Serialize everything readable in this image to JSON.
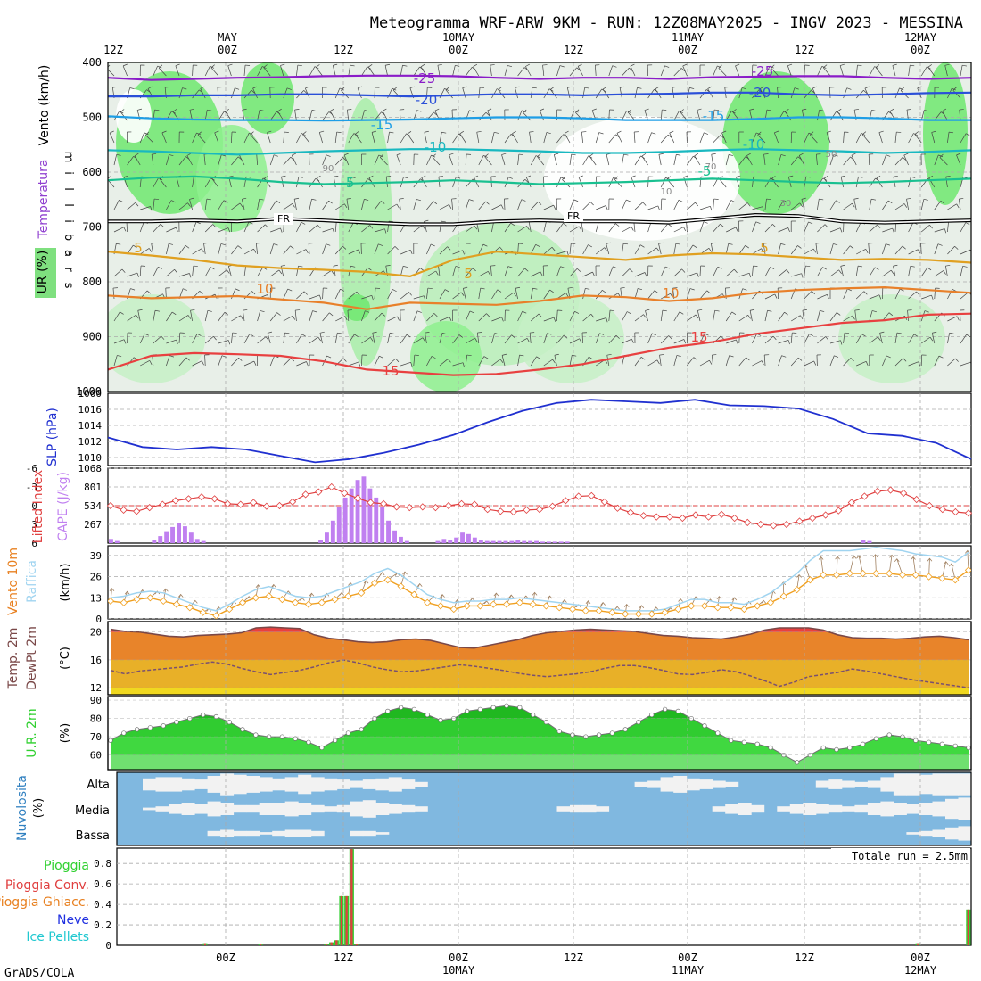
{
  "title": "Meteogramma WRF-ARW 9KM - RUN: 12Z08MAY2025 - INGV 2023 - MESSINA",
  "footer": "GrADS/COLA",
  "time_axis": {
    "top_labels": [
      {
        "hour": "12Z",
        "date": ""
      },
      {
        "hour": "00Z",
        "date": "MAY"
      },
      {
        "hour": "12Z",
        "date": ""
      },
      {
        "hour": "00Z",
        "date": "10MAY"
      },
      {
        "hour": "12Z",
        "date": ""
      },
      {
        "hour": "00Z",
        "date": "11MAY"
      },
      {
        "hour": "12Z",
        "date": ""
      },
      {
        "hour": "00Z",
        "date": "12MAY"
      }
    ],
    "bottom_labels": [
      {
        "hour": "00Z",
        "date": ""
      },
      {
        "hour": "12Z",
        "date": ""
      },
      {
        "hour": "00Z",
        "date": "10MAY"
      },
      {
        "hour": "12Z",
        "date": ""
      },
      {
        "hour": "00Z",
        "date": "11MAY"
      },
      {
        "hour": "12Z",
        "date": ""
      },
      {
        "hour": "00Z",
        "date": "12MAY"
      }
    ]
  },
  "chart_data": [
    {
      "type": "heatmap",
      "panel": "upper_air",
      "ylabel_parts": [
        "Vento (km/h)",
        "Temperatura",
        "UR (%)"
      ],
      "yaxis_name": "millibars",
      "yticks": [
        400,
        500,
        600,
        700,
        800,
        900,
        1000
      ],
      "ylim": [
        1000,
        400
      ],
      "isotherm_labels": [
        "-25",
        "-20",
        "-15",
        "-10",
        "-5",
        "FR",
        "5",
        "10",
        "15"
      ],
      "rh_labels": [
        "90",
        "70",
        "50",
        "30",
        "10"
      ],
      "isotherms": [
        {
          "label": "-25",
          "color": "#8a1cc8",
          "p": [
            428,
            432,
            430,
            428,
            427,
            425,
            424,
            424,
            425,
            428,
            430,
            428,
            428,
            430,
            427,
            426,
            425,
            425,
            428,
            430,
            428
          ]
        },
        {
          "label": "-20",
          "color": "#2a4fd8",
          "p": [
            462,
            462,
            460,
            460,
            458,
            458,
            460,
            462,
            460,
            458,
            458,
            460,
            458,
            457,
            455,
            455,
            458,
            460,
            458,
            456,
            455
          ]
        },
        {
          "label": "-15",
          "color": "#1e9ee6",
          "p": [
            498,
            502,
            504,
            505,
            505,
            506,
            505,
            504,
            502,
            500,
            500,
            502,
            505,
            505,
            505,
            503,
            500,
            500,
            502,
            505,
            505
          ]
        },
        {
          "label": "-10",
          "color": "#19b8c0",
          "p": [
            560,
            562,
            565,
            568,
            565,
            562,
            560,
            558,
            558,
            560,
            562,
            565,
            565,
            563,
            560,
            558,
            560,
            562,
            565,
            563,
            560
          ]
        },
        {
          "label": "-5",
          "color": "#19c090",
          "p": [
            615,
            610,
            608,
            612,
            618,
            622,
            620,
            618,
            615,
            618,
            622,
            620,
            618,
            615,
            612,
            615,
            618,
            620,
            618,
            615,
            612
          ]
        },
        {
          "label": "5",
          "color": "#e0a020",
          "p": [
            745,
            752,
            760,
            770,
            775,
            778,
            782,
            790,
            760,
            745,
            750,
            755,
            760,
            752,
            748,
            750,
            755,
            760,
            758,
            760,
            765
          ]
        },
        {
          "label": "10",
          "color": "#e8802a",
          "p": [
            825,
            830,
            828,
            826,
            832,
            838,
            850,
            838,
            840,
            842,
            835,
            825,
            828,
            835,
            830,
            820,
            815,
            812,
            810,
            815,
            820
          ]
        },
        {
          "label": "15",
          "color": "#e84040",
          "p": [
            960,
            935,
            930,
            932,
            935,
            945,
            960,
            965,
            970,
            968,
            960,
            950,
            935,
            920,
            910,
            895,
            885,
            875,
            870,
            860,
            858
          ]
        }
      ],
      "freezing_level": [
        690,
        690,
        688,
        690,
        685,
        688,
        692,
        695,
        695,
        690,
        688,
        690,
        690,
        692,
        685,
        678,
        680,
        690,
        692,
        690,
        688
      ]
    },
    {
      "type": "line",
      "panel": "slp",
      "ylabel": "SLP (hPa)",
      "yticks": [
        "1010",
        "1012",
        "1014",
        "1016"
      ],
      "ylim": [
        1009,
        1018
      ],
      "color": "#2030d0",
      "values": [
        1012.5,
        1011.3,
        1011.0,
        1011.3,
        1011.0,
        1010.2,
        1009.4,
        1009.8,
        1010.6,
        1011.6,
        1012.8,
        1014.4,
        1015.8,
        1016.8,
        1017.2,
        1017.0,
        1016.8,
        1017.2,
        1016.5,
        1016.4,
        1016.1,
        1014.8,
        1013.0,
        1012.7,
        1011.8,
        1009.8
      ]
    },
    {
      "type": "bar",
      "panel": "cape_li",
      "ylabel_left": "Lifted Index",
      "ylabel_right": "CAPE (J/kg)",
      "li_ticks": [
        "-6",
        "-3",
        "0",
        "3",
        "6"
      ],
      "cape_ticks": [
        "267",
        "534",
        "801",
        "1068"
      ],
      "cape_ylim": [
        0,
        1068
      ],
      "li_ylim": [
        -6,
        6
      ],
      "cape_color": "#c080f0",
      "li_color": "#e04040",
      "cape_values": [
        60,
        30,
        0,
        0,
        0,
        0,
        0,
        40,
        100,
        170,
        230,
        280,
        240,
        150,
        60,
        30,
        0,
        0,
        0,
        0,
        0,
        0,
        0,
        0,
        0,
        0,
        0,
        0,
        0,
        0,
        0,
        0,
        0,
        0,
        40,
        150,
        320,
        520,
        650,
        780,
        900,
        950,
        780,
        650,
        520,
        320,
        180,
        90,
        30,
        0,
        0,
        0,
        0,
        30,
        60,
        40,
        80,
        150,
        130,
        80,
        40,
        30,
        30,
        30,
        30,
        30,
        40,
        30,
        30,
        30,
        20,
        20,
        20,
        20,
        20,
        0,
        0,
        0,
        0,
        0,
        0,
        0,
        0,
        0,
        0,
        0,
        0,
        0,
        0,
        0,
        0,
        0,
        0,
        0,
        0,
        0,
        0,
        0,
        0,
        0,
        0,
        0,
        0,
        0,
        0,
        0,
        0,
        0,
        0,
        0,
        0,
        0,
        0,
        0,
        0,
        0,
        0,
        0,
        0,
        0,
        0,
        0,
        40,
        30,
        0,
        0,
        0,
        0,
        0,
        0,
        0,
        0,
        0,
        0,
        0,
        0,
        0,
        0,
        0,
        0
      ],
      "li_values": [
        0,
        0.7,
        0.9,
        0.3,
        -0.2,
        -0.8,
        -1.1,
        -1.4,
        -1.1,
        -0.3,
        -0.2,
        -0.5,
        0.1,
        0.0,
        -0.6,
        -1.8,
        -2.2,
        -3.0,
        -2.0,
        -1.2,
        -0.5,
        -0.3,
        0.2,
        0.3,
        0.2,
        0.3,
        0.0,
        -0.3,
        -0.2,
        0.6,
        0.9,
        1.0,
        0.7,
        0.6,
        0.1,
        -0.8,
        -1.5,
        -1.6,
        -0.6,
        0.4,
        1.1,
        1.6,
        1.8,
        1.8,
        2.0,
        1.5,
        1.8,
        1.4,
        2.0,
        2.7,
        3.0,
        3.2,
        3.0,
        2.5,
        2.0,
        1.5,
        0.8,
        -0.5,
        -1.5,
        -2.3,
        -2.5,
        -2.0,
        -1.0,
        0.0,
        0.6,
        1.0,
        1.2
      ]
    },
    {
      "type": "line",
      "panel": "wind10m",
      "ylabel_parts": [
        "Vento 10m",
        "Raffica"
      ],
      "units": "(km/h)",
      "yticks": [
        "0",
        "13",
        "26",
        "39"
      ],
      "ylim": [
        0,
        45
      ],
      "wind_color": "#f0a020",
      "gust_color": "#a0d4f0",
      "barb_color": "#a08060",
      "wind_values": [
        11,
        10,
        12,
        13,
        11,
        9,
        7,
        4,
        2,
        6,
        10,
        13,
        14,
        12,
        10,
        9,
        10,
        12,
        14,
        16,
        22,
        24,
        20,
        15,
        10,
        8,
        6,
        8,
        8,
        9,
        9,
        10,
        9,
        8,
        7,
        6,
        5,
        5,
        4,
        3,
        3,
        3,
        4,
        6,
        8,
        8,
        7,
        7,
        6,
        8,
        10,
        14,
        18,
        24,
        27,
        27,
        28,
        28,
        28,
        28,
        27,
        27,
        26,
        25,
        24,
        30
      ],
      "gust_values": [
        13,
        14,
        16,
        17,
        16,
        13,
        10,
        7,
        5,
        9,
        14,
        18,
        20,
        17,
        14,
        13,
        14,
        17,
        20,
        23,
        28,
        31,
        27,
        21,
        15,
        12,
        10,
        11,
        11,
        12,
        12,
        13,
        12,
        11,
        10,
        9,
        8,
        7,
        6,
        5,
        5,
        5,
        6,
        9,
        12,
        12,
        10,
        10,
        9,
        12,
        16,
        22,
        28,
        36,
        42,
        42,
        42,
        43,
        44,
        43,
        42,
        40,
        39,
        38,
        35,
        41
      ]
    },
    {
      "type": "area",
      "panel": "temp2m",
      "ylabel_parts": [
        "Temp. 2m",
        "DewPt 2m"
      ],
      "units": "(°C)",
      "yticks": [
        "12",
        "16",
        "20"
      ],
      "ylim": [
        11,
        21.5
      ],
      "temp_color": "#e8842a",
      "dew_color": "#7a5070",
      "temp_values": [
        20.4,
        20.1,
        20.0,
        19.7,
        19.4,
        19.3,
        19.5,
        19.6,
        19.7,
        19.9,
        20.6,
        20.7,
        20.6,
        20.5,
        19.6,
        19.1,
        18.9,
        18.6,
        18.5,
        18.6,
        18.9,
        19.0,
        18.8,
        18.3,
        17.8,
        17.7,
        18.1,
        18.5,
        18.9,
        19.5,
        19.9,
        20.1,
        20.3,
        20.4,
        20.3,
        20.2,
        20.1,
        19.8,
        19.5,
        19.4,
        19.2,
        19.1,
        19.0,
        19.3,
        19.7,
        20.3,
        20.6,
        20.6,
        20.6,
        20.3,
        19.6,
        19.2,
        19.1,
        19.1,
        19.0,
        19.1,
        19.3,
        19.4,
        19.2,
        18.9
      ],
      "dew_values": [
        14.5,
        14.0,
        14.4,
        14.6,
        14.8,
        15.0,
        15.4,
        15.7,
        15.4,
        14.8,
        14.3,
        13.9,
        14.2,
        14.5,
        15.0,
        15.6,
        16.0,
        15.6,
        15.0,
        14.6,
        14.3,
        14.4,
        14.7,
        15.0,
        15.3,
        15.1,
        14.8,
        14.5,
        14.1,
        13.8,
        13.6,
        13.8,
        14.0,
        14.3,
        14.8,
        15.2,
        15.2,
        14.9,
        14.5,
        14.0,
        13.9,
        14.2,
        14.6,
        14.3,
        13.7,
        13.0,
        12.2,
        12.8,
        13.6,
        13.9,
        14.2,
        14.7,
        14.4,
        14.0,
        13.6,
        13.2,
        12.9,
        12.6,
        12.3,
        12.0
      ]
    },
    {
      "type": "area",
      "panel": "rh2m",
      "ylabel": "U.R. 2m",
      "units": "(%)",
      "yticks": [
        "60",
        "70",
        "80",
        "90"
      ],
      "ylim": [
        52,
        92
      ],
      "color": "#30d030",
      "values": [
        68,
        72,
        74,
        75,
        76,
        78,
        80,
        82,
        81,
        78,
        74,
        71,
        70,
        70,
        69,
        67,
        64,
        68,
        72,
        74,
        80,
        84,
        86,
        85,
        82,
        79,
        80,
        84,
        85,
        86,
        87,
        86,
        82,
        78,
        73,
        71,
        70,
        71,
        72,
        74,
        78,
        82,
        85,
        84,
        80,
        76,
        72,
        68,
        67,
        66,
        64,
        60,
        56,
        60,
        64,
        63,
        64,
        66,
        69,
        71,
        70,
        68,
        67,
        66,
        65,
        64
      ]
    },
    {
      "type": "heatmap",
      "panel": "clouds",
      "ylabel": "Nuvolosita",
      "units": "(%)",
      "levels": [
        "Alta",
        "Media",
        "Bassa"
      ],
      "background_color": "#80b8e0",
      "cloud_color": "#f2f2f2",
      "alta": [
        0,
        0,
        0.5,
        0.6,
        0.6,
        0.5,
        0.4,
        0.7,
        0.9,
        0.8,
        0.7,
        0.6,
        0.5,
        0.6,
        0.8,
        0.6,
        0.5,
        0.4,
        0.3,
        0.4,
        0.5,
        0.6,
        0.4,
        0.2,
        0,
        0,
        0,
        0,
        0,
        0,
        0,
        0,
        0,
        0,
        0,
        0,
        0,
        0,
        0,
        0,
        0.2,
        0.3,
        0.6,
        0.7,
        0.5,
        0.4,
        0.3,
        0.2,
        0,
        0,
        0,
        0,
        0,
        0,
        0.3,
        0.4,
        0.3,
        0.2,
        0.3,
        0.6,
        0.9,
        0.9,
        0.8,
        0.9,
        0.9,
        0.9
      ],
      "media": [
        0,
        0,
        0.1,
        0.2,
        0.4,
        0.5,
        0.4,
        0.6,
        0.5,
        0.3,
        0.3,
        0.5,
        0.5,
        0.6,
        0.5,
        0.3,
        0.2,
        0.3,
        0.6,
        0.7,
        0.5,
        0.4,
        0.3,
        0.2,
        0,
        0,
        0,
        0,
        0,
        0,
        0,
        0,
        0,
        0,
        0.2,
        0.3,
        0.3,
        0.2,
        0,
        0,
        0,
        0,
        0,
        0,
        0,
        0,
        0.2,
        0.4,
        0.5,
        0.3,
        0,
        0.2,
        0.4,
        0.5,
        0.4,
        0.3,
        0.2,
        0.3,
        0.5,
        0.6,
        0.5,
        0.4,
        0.5,
        0.6,
        0.8,
        0.9
      ],
      "bassa": [
        0,
        0,
        0,
        0,
        0,
        0,
        0,
        0.2,
        0.3,
        0.2,
        0.2,
        0.1,
        0.2,
        0.3,
        0.3,
        0.2,
        0,
        0,
        0.2,
        0.2,
        0.1,
        0,
        0,
        0,
        0,
        0,
        0,
        0,
        0,
        0,
        0,
        0,
        0,
        0,
        0,
        0,
        0,
        0,
        0,
        0,
        0,
        0,
        0,
        0,
        0,
        0,
        0,
        0,
        0,
        0,
        0,
        0,
        0,
        0,
        0,
        0,
        0,
        0,
        0,
        0,
        0,
        0.1,
        0.2,
        0.3,
        0.5,
        0.6
      ]
    },
    {
      "type": "bar",
      "panel": "precip",
      "legend": [
        "Pioggia",
        "Pioggia Conv.",
        "Pioggia Ghiacc.",
        "Neve",
        "Ice Pellets"
      ],
      "legend_colors": [
        "#30d030",
        "#e04040",
        "#e88020",
        "#2030e0",
        "#20c8d0"
      ],
      "total_text": "Totale run = 2.5mm",
      "yticks": [
        "0",
        "0.2",
        "0.4",
        "0.6",
        "0.8"
      ],
      "ylim": [
        0,
        0.95
      ],
      "bars": [
        {
          "step": 17,
          "conv": 0.02
        },
        {
          "step": 28,
          "conv": 0.01
        },
        {
          "step": 41,
          "conv": 0.01
        },
        {
          "step": 42,
          "conv": 0.03
        },
        {
          "step": 43,
          "conv": 0.05
        },
        {
          "step": 44,
          "conv": 0.48
        },
        {
          "step": 45,
          "conv": 0.48
        },
        {
          "step": 46,
          "conv": 0.94
        },
        {
          "step": 47,
          "conv": 0.01
        },
        {
          "step": 158,
          "conv": 0.02
        },
        {
          "step": 168,
          "conv": 0.35
        }
      ]
    }
  ]
}
